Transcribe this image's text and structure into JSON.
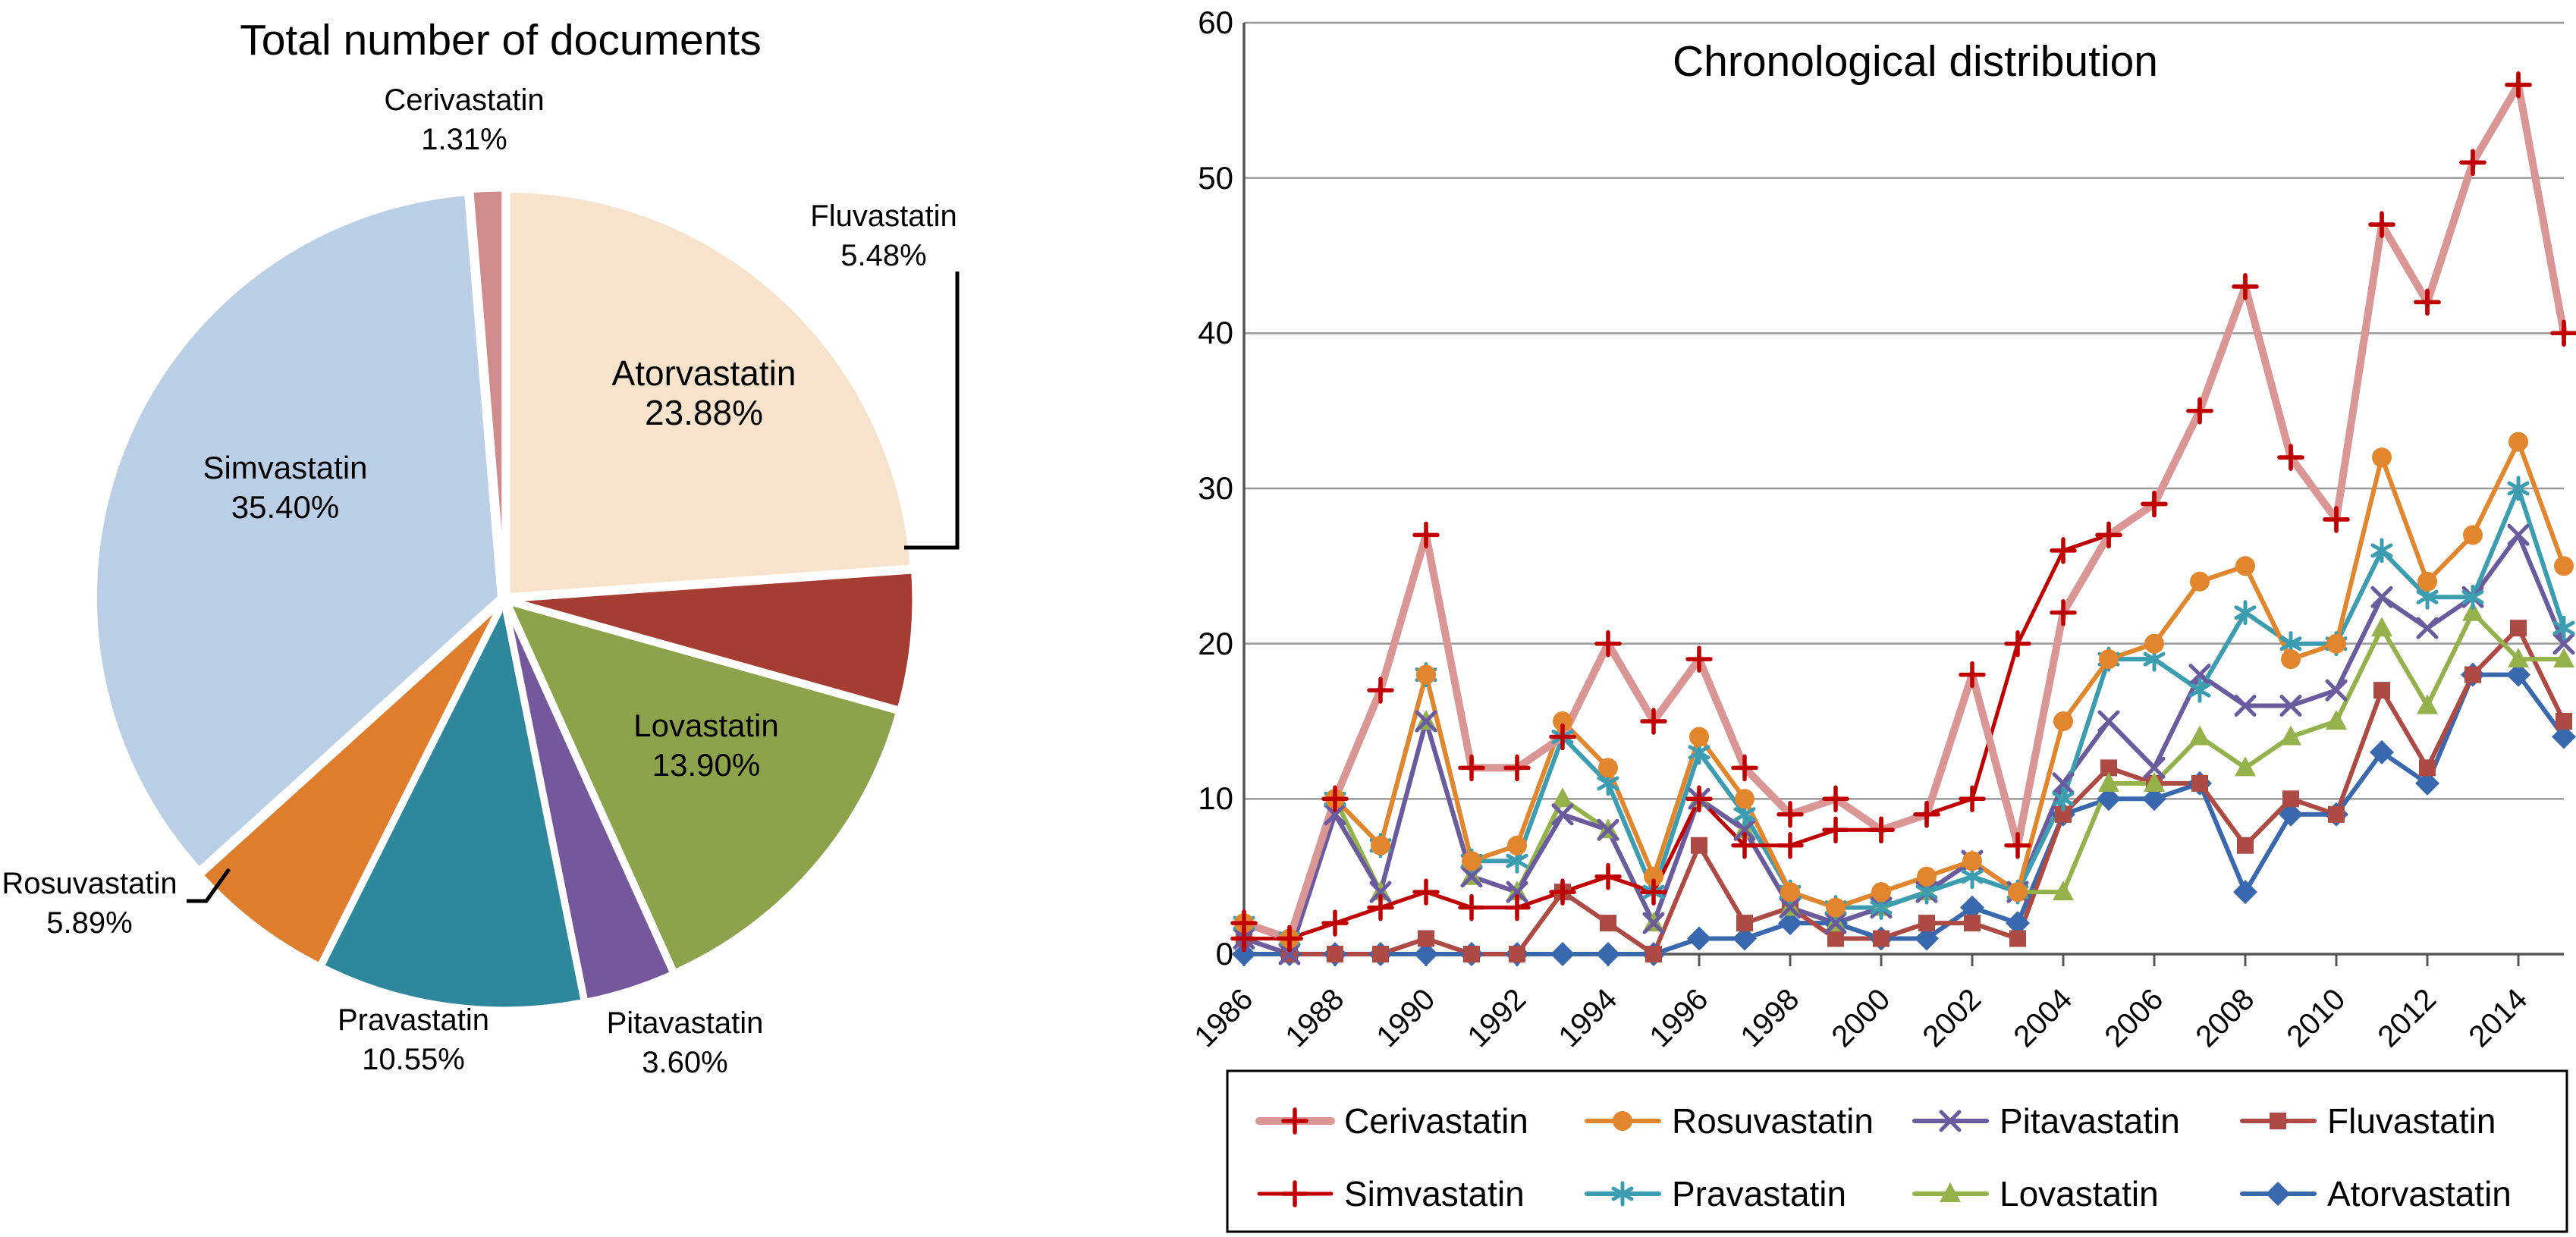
{
  "figure": {
    "background": "#ffffff",
    "description": "Two-panel statin bibliometrics figure: pie chart of document share per statin and line chart of yearly document counts"
  },
  "chart_data": [
    {
      "type": "pie",
      "title": "Total number of documents",
      "direction": "clockwise",
      "start_angle_deg": 0,
      "slices": [
        {
          "label": "Atorvastatin",
          "value": 23.88,
          "display": "23.88%",
          "color": "#F7E3CC"
        },
        {
          "label": "Fluvastatin",
          "value": 5.48,
          "display": "5.48%",
          "color": "#A63D33"
        },
        {
          "label": "Lovastatin",
          "value": 13.9,
          "display": "13.90%",
          "color": "#8CA24B"
        },
        {
          "label": "Pitavastatin",
          "value": 3.6,
          "display": "3.60%",
          "color": "#75589B"
        },
        {
          "label": "Pravastatin",
          "value": 10.55,
          "display": "10.55%",
          "color": "#2F879C"
        },
        {
          "label": "Rosuvastatin",
          "value": 5.89,
          "display": "5.89%",
          "color": "#DE7E2D"
        },
        {
          "label": "Simvastatin",
          "value": 35.4,
          "display": "35.40%",
          "color": "#BACFE6"
        },
        {
          "label": "Cerivastatin",
          "value": 1.31,
          "display": "1.31%",
          "color": "#D08C8C"
        }
      ]
    },
    {
      "type": "line",
      "title": "Chronological distribution",
      "x": [
        1986,
        1987,
        1988,
        1989,
        1990,
        1991,
        1992,
        1993,
        1994,
        1995,
        1996,
        1997,
        1998,
        1999,
        2000,
        2001,
        2002,
        2003,
        2004,
        2005,
        2006,
        2007,
        2008,
        2009,
        2010,
        2011,
        2012,
        2013,
        2014,
        2015
      ],
      "x_tick_labels": [
        "1986",
        "1988",
        "1990",
        "1992",
        "1994",
        "1996",
        "1998",
        "2000",
        "2002",
        "2004",
        "2006",
        "2008",
        "2010",
        "2012",
        "2014"
      ],
      "ylim": [
        0,
        60
      ],
      "y_ticks": [
        0,
        10,
        20,
        30,
        40,
        50,
        60
      ],
      "grid": "horizontal",
      "legend_position": "bottom-box",
      "series": [
        {
          "name": "Atorvastatin",
          "color": "#3A68AE",
          "marker": "diamond",
          "line_width": 6,
          "values": [
            0,
            0,
            0,
            0,
            0,
            0,
            0,
            0,
            0,
            0,
            1,
            1,
            2,
            2,
            1,
            1,
            3,
            2,
            9,
            10,
            10,
            11,
            4,
            9,
            9,
            13,
            11,
            18,
            18,
            14
          ]
        },
        {
          "name": "Fluvastatin",
          "color": "#AE4A44",
          "marker": "square",
          "line_width": 6,
          "values": [
            1,
            0,
            0,
            0,
            1,
            0,
            0,
            4,
            2,
            0,
            7,
            2,
            3,
            1,
            1,
            2,
            2,
            1,
            9,
            12,
            11,
            11,
            7,
            10,
            9,
            17,
            12,
            18,
            21,
            15
          ]
        },
        {
          "name": "Lovastatin",
          "color": "#94B14C",
          "marker": "triangle",
          "line_width": 6,
          "values": [
            2,
            1,
            10,
            4,
            15,
            5,
            4,
            10,
            8,
            2,
            10,
            8,
            3,
            2,
            3,
            4,
            6,
            4,
            4,
            11,
            11,
            14,
            12,
            14,
            15,
            21,
            16,
            22,
            19,
            19
          ]
        },
        {
          "name": "Pitavastatin",
          "color": "#6A5A9E",
          "marker": "x",
          "line_width": 6,
          "values": [
            1,
            0,
            9,
            4,
            15,
            5,
            4,
            9,
            8,
            2,
            10,
            8,
            3,
            2,
            3,
            4,
            6,
            4,
            11,
            15,
            12,
            18,
            16,
            16,
            17,
            23,
            21,
            23,
            27,
            20
          ]
        },
        {
          "name": "Pravastatin",
          "color": "#3C9DB0",
          "marker": "asterisk",
          "line_width": 6,
          "values": [
            2,
            1,
            10,
            7,
            18,
            6,
            6,
            14,
            11,
            4,
            13,
            9,
            4,
            3,
            3,
            4,
            5,
            4,
            10,
            19,
            19,
            17,
            22,
            20,
            20,
            26,
            23,
            23,
            30,
            21
          ]
        },
        {
          "name": "Rosuvastatin",
          "color": "#E2862E",
          "marker": "circle",
          "line_width": 6,
          "values": [
            2,
            1,
            10,
            7,
            18,
            6,
            7,
            15,
            12,
            5,
            14,
            10,
            4,
            3,
            4,
            5,
            6,
            4,
            15,
            19,
            20,
            24,
            25,
            19,
            20,
            32,
            24,
            27,
            33,
            25
          ]
        },
        {
          "name": "Simvastatin",
          "color": "#C00000",
          "marker": "plus",
          "line_width": 5,
          "values": [
            1,
            1,
            2,
            3,
            4,
            3,
            3,
            4,
            5,
            4,
            10,
            7,
            7,
            8,
            8,
            9,
            10,
            20,
            26,
            27,
            29,
            35,
            43,
            32,
            28,
            47,
            42,
            51,
            56,
            40
          ]
        },
        {
          "name": "Cerivastatin",
          "color": "#D99694",
          "marker": "plus",
          "marker_color": "#C00000",
          "line_width": 10,
          "values": [
            2,
            1,
            10,
            17,
            27,
            12,
            12,
            14,
            20,
            15,
            19,
            12,
            9,
            10,
            8,
            9,
            18,
            7,
            22,
            27,
            29,
            35,
            43,
            32,
            28,
            47,
            42,
            51,
            56,
            40
          ]
        }
      ],
      "legend_order": [
        [
          "Cerivastatin",
          "Rosuvastatin",
          "Pitavastatin",
          "Fluvastatin"
        ],
        [
          "Simvastatin",
          "Pravastatin",
          "Lovastatin",
          "Atorvastatin"
        ]
      ]
    }
  ]
}
